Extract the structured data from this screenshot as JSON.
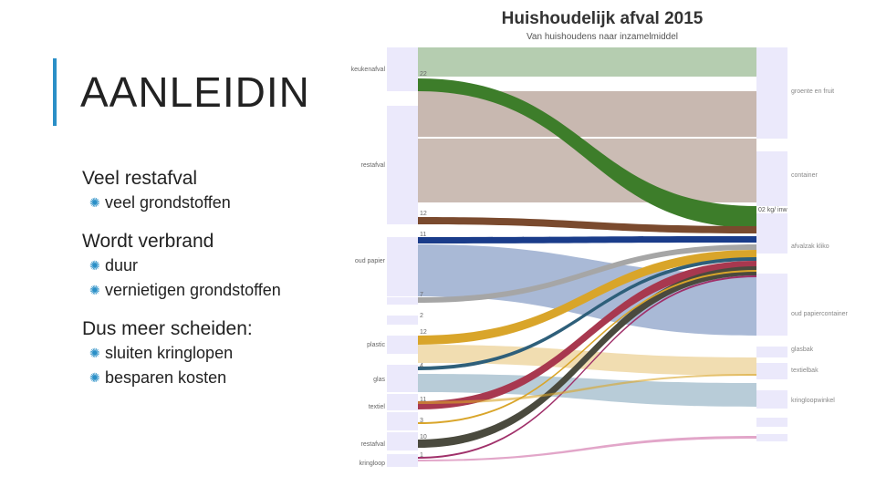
{
  "slide": {
    "title": "AANLEIDIN",
    "sections": [
      {
        "heading": "Veel restafval",
        "items": [
          "veel grondstoffen"
        ]
      },
      {
        "heading": "Wordt verbrand",
        "items": [
          "duur",
          "vernietigen grondstoffen"
        ]
      },
      {
        "heading": "Dus meer scheiden:",
        "items": [
          "sluiten kringlopen",
          "besparen kosten"
        ]
      }
    ]
  },
  "diagram": {
    "title": "Huishoudelijk afval 2015",
    "subtitle": "Van huishoudens naar inzamelmiddel",
    "sources": [
      {
        "label": "keukenafval",
        "value": "22"
      },
      {
        "label": "restafval",
        "value": "12"
      },
      {
        "label": "",
        "value": "11"
      },
      {
        "label": "oud papier",
        "value": ""
      },
      {
        "label": "",
        "value": "7"
      },
      {
        "label": "",
        "value": "2"
      },
      {
        "label": "plastic",
        "value": "12"
      },
      {
        "label": "glas",
        "value": "4"
      },
      {
        "label": "textiel",
        "value": "11"
      },
      {
        "label": "",
        "value": "3"
      },
      {
        "label": "restafval",
        "value": "10"
      },
      {
        "label": "kringloop",
        "value": "1"
      }
    ],
    "targets": [
      {
        "label": "groente en fruit"
      },
      {
        "label": "container"
      },
      {
        "label": "afvalzak kliko",
        "value": "02 kg/ inw"
      },
      {
        "label": "oud papiercontainer"
      },
      {
        "label": "glasbak"
      },
      {
        "label": "textielbak"
      },
      {
        "label": "kringloopwinkel"
      }
    ],
    "colors": {
      "keuken": "#b5cdb0",
      "rest": "#c8b8b0",
      "green": "#3d7d2a",
      "brown": "#7a4a2e",
      "navy": "#1a3c8a",
      "papier": "#a9b9d6",
      "gray": "#a6a6a6",
      "gold": "#d9a52a",
      "teal": "#2e5f7a",
      "red": "#a8384f",
      "black": "#4a4a3e",
      "pink": "#e2a6c9",
      "lightgold": "#f0d9a8",
      "lightblue": "#b0c6d4",
      "node": "#ebe9fb"
    }
  }
}
